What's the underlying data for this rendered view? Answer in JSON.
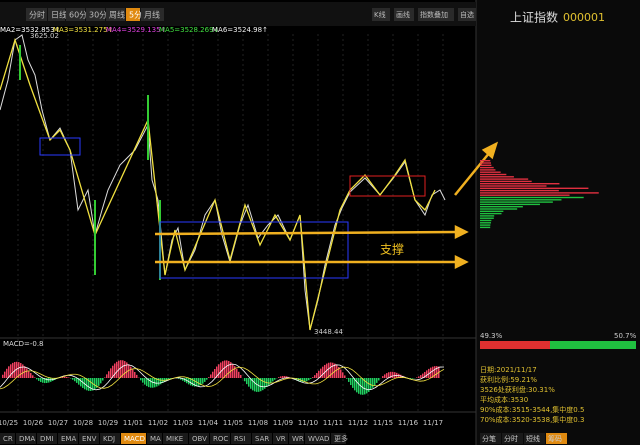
{
  "toolbar": {
    "periods": [
      "分时",
      "日线",
      "60分",
      "30分",
      "周线",
      "5分",
      "月线"
    ],
    "selected": "5分",
    "tools": [
      "K线",
      "画线",
      "指数叠加",
      "自选"
    ]
  },
  "ma_legend": [
    "MA2=3532.853↑",
    "MA3=3531.275↑",
    "MA4=3529.135↑",
    "MA5=3528.269↓",
    "MA6=3524.98↑"
  ],
  "price_high": "3625.02",
  "price_low": "3448.44",
  "annotation": "支撑",
  "macd_label": "MACD=-0.8",
  "dates": [
    "10/25",
    "10/26",
    "10/27",
    "10/28",
    "10/29",
    "11/01",
    "11/02",
    "11/03",
    "11/04",
    "11/05",
    "11/08",
    "11/09",
    "11/10",
    "11/11",
    "11/12",
    "11/15",
    "11/16",
    "11/17"
  ],
  "indicator_tabs": [
    "CR",
    "DMA",
    "DMI",
    "EMA",
    "ENV",
    "KDJ",
    "MACD",
    "MA",
    "MIKE",
    "OBV",
    "ROC",
    "RSI",
    "SAR",
    "VR",
    "WR",
    "WVAD",
    "更多"
  ],
  "side": {
    "title": "上证指数",
    "code": "000001",
    "left_pct": "49.3%",
    "right_pct": "50.7%",
    "info": [
      "日期:2021/11/17",
      "获利比例:59.21%",
      "3526处获利盘:30.31%",
      "平均成本:3530",
      "90%成本:3515-3544,集中度0.5",
      "70%成本:3520-3538,集中度0.3"
    ],
    "tabs": [
      "分笔",
      "分时",
      "短线",
      "筹码"
    ]
  }
}
